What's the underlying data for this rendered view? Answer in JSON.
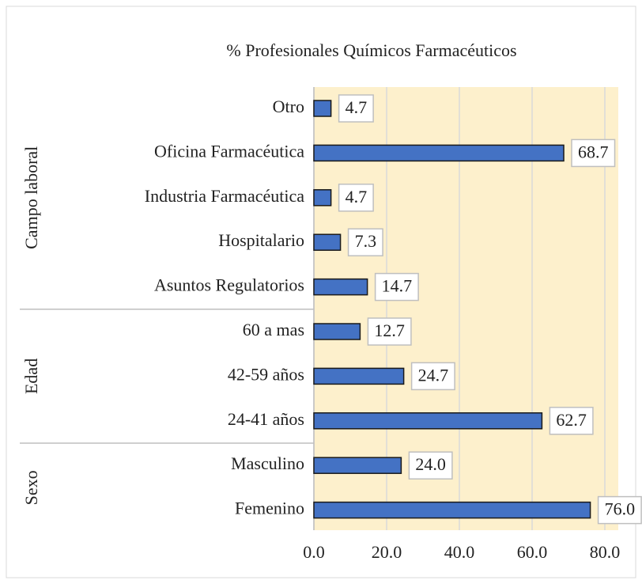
{
  "chart_data": {
    "type": "bar",
    "orientation": "horizontal",
    "title": "% Profesionales Químicos Farmacéuticos",
    "color": "#4472c4",
    "plot_background": "#fdf0cc",
    "grid": true,
    "groups": [
      {
        "name": "Campo laboral",
        "categories": [
          "Otro",
          "Oficina Farmacéutica",
          "Industria Farmacéutica",
          "Hospitalario",
          "Asuntos Regulatorios"
        ],
        "values": [
          4.7,
          68.7,
          4.7,
          7.3,
          14.7
        ],
        "value_labels": [
          "4.7",
          "68.7",
          "4.7",
          "7.3",
          "14.7"
        ]
      },
      {
        "name": "Edad",
        "categories": [
          "60 a mas",
          "42-59 años",
          "24-41 años"
        ],
        "values": [
          12.7,
          24.7,
          62.7
        ],
        "value_labels": [
          "12.7",
          "24.7",
          "62.7"
        ]
      },
      {
        "name": "Sexo",
        "categories": [
          "Masculino",
          "Femenino"
        ],
        "values": [
          24,
          76
        ],
        "value_labels": [
          "24.0",
          "76.0"
        ]
      }
    ],
    "xlim": [
      0,
      80
    ],
    "xticks": [
      {
        "value": 0,
        "label": "0.0"
      },
      {
        "value": 20,
        "label": "20.0"
      },
      {
        "value": 40,
        "label": "40.0"
      },
      {
        "value": 60,
        "label": "60.0"
      },
      {
        "value": 80,
        "label": "80.0"
      }
    ]
  }
}
